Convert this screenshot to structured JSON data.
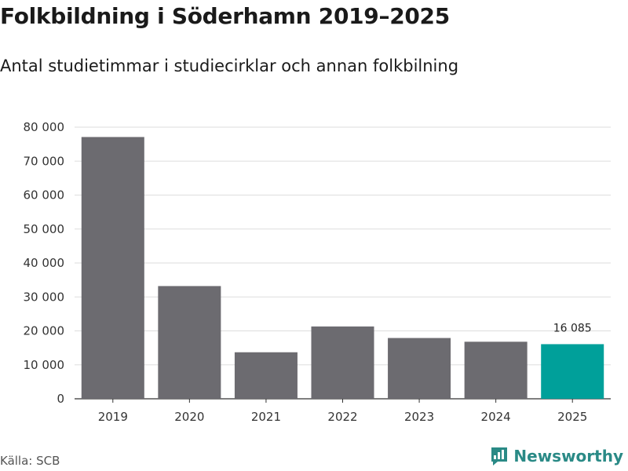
{
  "title": "Folkbildning i Söderhamn 2019–2025",
  "subtitle": "Antal studietimmar i studiecirklar och annan folkbilning",
  "source": "Källa: SCB",
  "brand": {
    "name": "Newsworthy",
    "icon": "newsworthy-logo-icon",
    "color": "#2a8a86"
  },
  "colors": {
    "bar": "#6c6b70",
    "highlight": "#00a09a",
    "grid": "#dddddd"
  },
  "chart_data": {
    "type": "bar",
    "title": "Folkbildning i Söderhamn 2019–2025",
    "subtitle": "Antal studietimmar i studiecirklar och annan folkbilning",
    "xlabel": "",
    "ylabel": "",
    "categories": [
      "2019",
      "2020",
      "2021",
      "2022",
      "2023",
      "2024",
      "2025"
    ],
    "values": [
      77100,
      33200,
      13700,
      21300,
      17900,
      16800,
      16085
    ],
    "highlight_index": 6,
    "data_labels": [
      {
        "index": 6,
        "text": "16 085"
      }
    ],
    "ylim": [
      0,
      80000
    ],
    "yticks": [
      0,
      10000,
      20000,
      30000,
      40000,
      50000,
      60000,
      70000,
      80000
    ],
    "ytick_labels": [
      "0",
      "10 000",
      "20 000",
      "30 000",
      "40 000",
      "50 000",
      "60 000",
      "70 000",
      "80 000"
    ],
    "grid": true
  }
}
